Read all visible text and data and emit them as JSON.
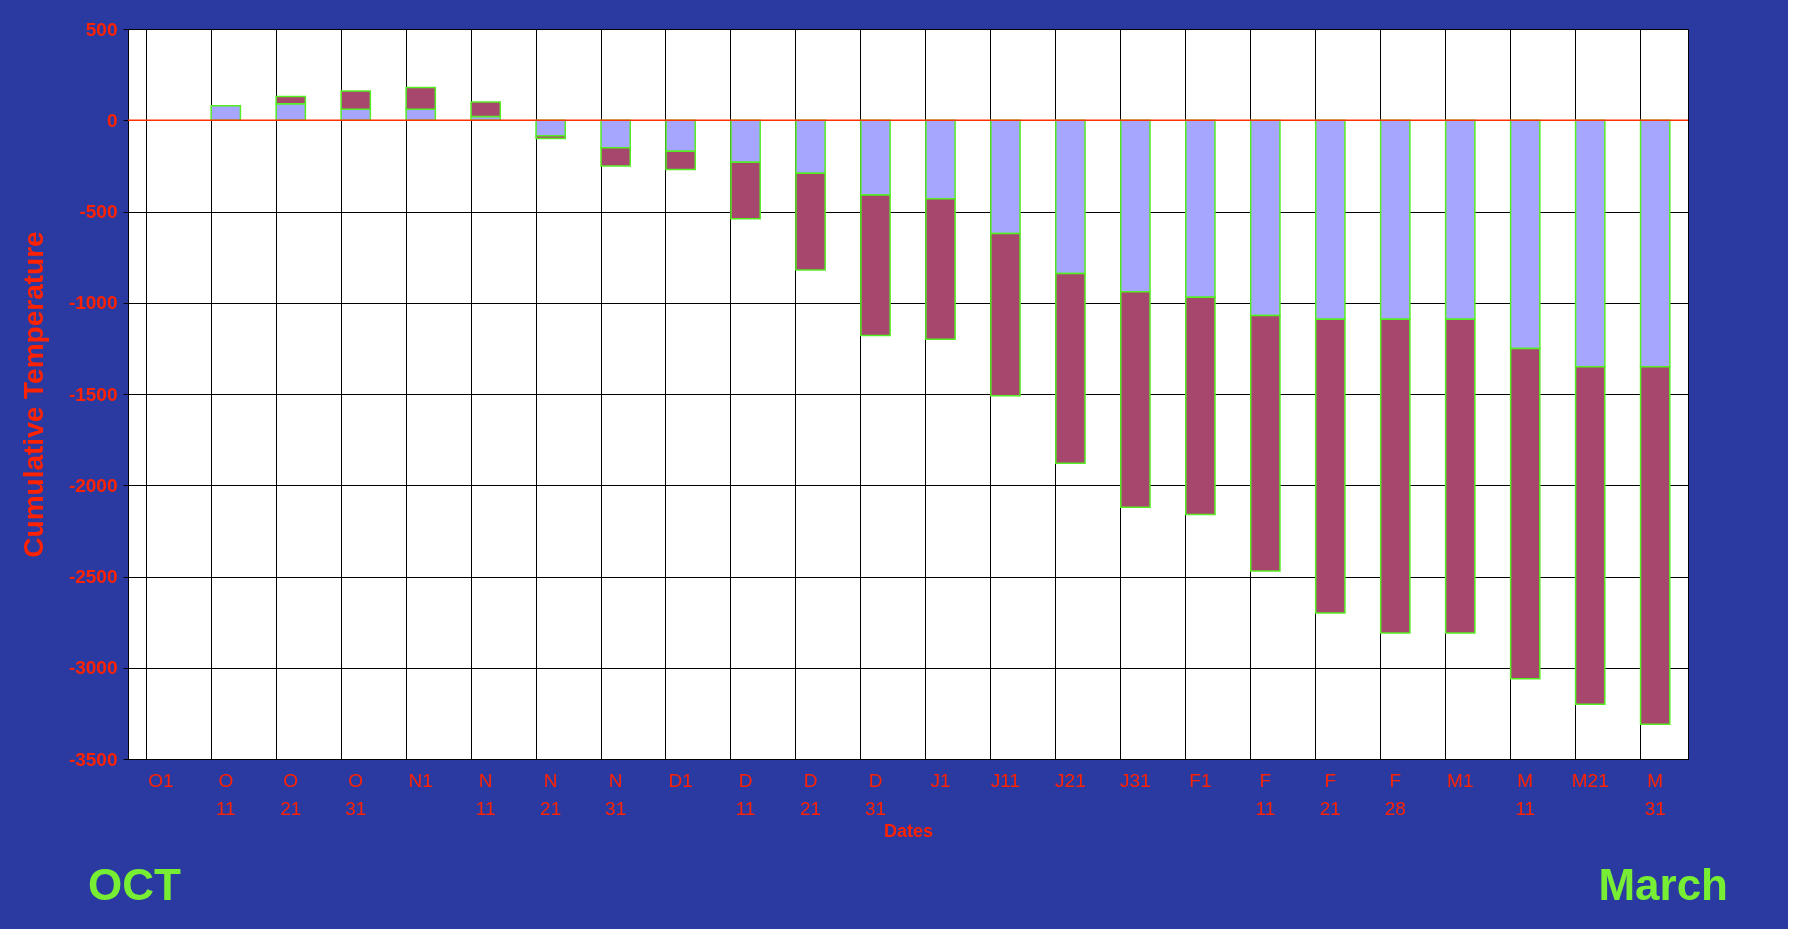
{
  "chart_data": {
    "type": "bar",
    "stacked": true,
    "xlabel": "Dates",
    "ylabel": "Cumulative Temperature",
    "categories": [
      "O1",
      "O 11",
      "O 21",
      "O 31",
      "N1",
      "N 11",
      "N 21",
      "N 31",
      "D1",
      "D 11",
      "D 21",
      "D 31",
      "J1",
      "J11",
      "J21",
      "J31",
      "F1",
      "F 11",
      "F 21",
      "F 28",
      "M1",
      "M 11",
      "M21",
      "M 31"
    ],
    "series": [
      {
        "color": "#a6a6ff",
        "values": [
          null,
          80,
          90,
          60,
          60,
          20,
          -85,
          -150,
          -170,
          -230,
          -290,
          -410,
          -430,
          -620,
          -840,
          -940,
          -970,
          -1070,
          -1090,
          -1090,
          -1090,
          -1250,
          -1350,
          -1350
        ]
      },
      {
        "color": "#a8476e",
        "values": [
          null,
          null,
          40,
          100,
          120,
          80,
          -15,
          -100,
          -100,
          -310,
          -530,
          -770,
          -770,
          -890,
          -1040,
          -1180,
          -1190,
          -1400,
          -1610,
          -1720,
          -1720,
          -1810,
          -1850,
          -1960
        ]
      }
    ],
    "ylim": [
      -3500,
      500
    ],
    "yticks": [
      -3500,
      -3000,
      -2500,
      -2000,
      -1500,
      -1000,
      -500,
      0,
      500
    ],
    "grid": true,
    "ref_lines": [
      {
        "axis": "y",
        "value": 0,
        "color": "#ff3300"
      }
    ],
    "annotations": [
      "OCT",
      "March"
    ]
  }
}
